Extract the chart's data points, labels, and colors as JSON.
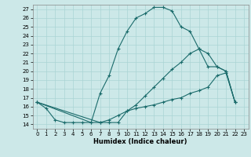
{
  "xlabel": "Humidex (Indice chaleur)",
  "bg_color": "#cce8e8",
  "line_color": "#1a6b6b",
  "xlim": [
    -0.5,
    23.5
  ],
  "ylim": [
    13.5,
    27.5
  ],
  "yticks": [
    14,
    15,
    16,
    17,
    18,
    19,
    20,
    21,
    22,
    23,
    24,
    25,
    26,
    27
  ],
  "xticks": [
    0,
    1,
    2,
    3,
    4,
    5,
    6,
    7,
    8,
    9,
    10,
    11,
    12,
    13,
    14,
    15,
    16,
    17,
    18,
    19,
    20,
    21,
    22,
    23
  ],
  "line1_x": [
    0,
    1,
    2,
    3,
    4,
    5,
    6,
    7,
    8,
    9,
    10,
    11,
    12,
    13,
    14,
    15,
    16,
    17,
    18,
    19,
    20,
    21,
    22
  ],
  "line1_y": [
    16.5,
    15.8,
    14.5,
    14.2,
    14.2,
    14.2,
    14.2,
    17.5,
    19.5,
    22.5,
    24.5,
    26.0,
    26.5,
    27.2,
    27.2,
    26.8,
    25.0,
    24.5,
    22.5,
    20.5,
    20.5,
    20.0,
    16.5
  ],
  "line2_x": [
    0,
    6,
    7,
    8,
    9,
    10,
    11,
    12,
    13,
    14,
    15,
    16,
    17,
    18,
    19,
    20,
    21,
    22
  ],
  "line2_y": [
    16.5,
    14.2,
    14.2,
    14.2,
    14.2,
    15.5,
    16.2,
    17.2,
    18.2,
    19.2,
    20.2,
    21.0,
    22.0,
    22.5,
    22.0,
    20.5,
    20.0,
    16.5
  ],
  "line3_x": [
    0,
    7,
    8,
    9,
    10,
    11,
    12,
    13,
    14,
    15,
    16,
    17,
    18,
    19,
    20,
    21,
    22
  ],
  "line3_y": [
    16.5,
    14.2,
    14.5,
    15.0,
    15.5,
    15.8,
    16.0,
    16.2,
    16.5,
    16.8,
    17.0,
    17.5,
    17.8,
    18.2,
    19.5,
    19.8,
    16.5
  ],
  "xlabel_fontsize": 6,
  "tick_fontsize": 5,
  "linewidth": 0.8,
  "markersize": 3,
  "grid_color": "#aad4d4",
  "spine_color": "#888888"
}
